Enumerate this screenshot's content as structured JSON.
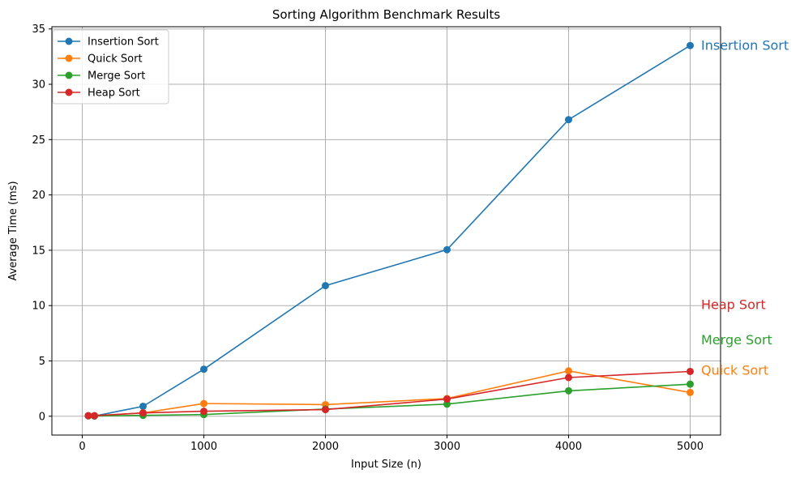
{
  "chart_data": {
    "type": "line",
    "title": "Sorting Algorithm Benchmark Results",
    "xlabel": "Input Size (n)",
    "ylabel": "Average Time (ms)",
    "x": [
      50,
      100,
      500,
      1000,
      2000,
      3000,
      4000,
      5000
    ],
    "xlim": [
      -250,
      5250
    ],
    "ylim": [
      -1.7,
      35.2
    ],
    "xticks": [
      0,
      1000,
      2000,
      3000,
      4000,
      5000
    ],
    "yticks": [
      0,
      5,
      10,
      15,
      20,
      25,
      30,
      35
    ],
    "grid": true,
    "legend_position": "top-left",
    "series": [
      {
        "name": "Insertion Sort",
        "color": "#1f77b4",
        "values": [
          0.05,
          0.02,
          0.9,
          4.25,
          11.8,
          15.05,
          26.8,
          33.5
        ],
        "end_label": "Insertion Sort",
        "end_label_y": 33.5
      },
      {
        "name": "Quick Sort",
        "color": "#ff7f0e",
        "values": [
          0.05,
          0.04,
          0.3,
          1.15,
          1.05,
          1.6,
          4.1,
          2.15
        ],
        "end_label": "Quick Sort",
        "end_label_y": 4.15
      },
      {
        "name": "Merge Sort",
        "color": "#2ca02c",
        "values": [
          0.03,
          0.03,
          0.08,
          0.15,
          0.65,
          1.1,
          2.3,
          2.9
        ],
        "end_label": "Merge Sort",
        "end_label_y": 6.9
      },
      {
        "name": "Heap Sort",
        "color": "#d62728",
        "values": [
          0.05,
          0.05,
          0.3,
          0.45,
          0.6,
          1.55,
          3.5,
          4.05
        ],
        "end_label": "Heap Sort",
        "end_label_y": 10.1
      }
    ]
  }
}
